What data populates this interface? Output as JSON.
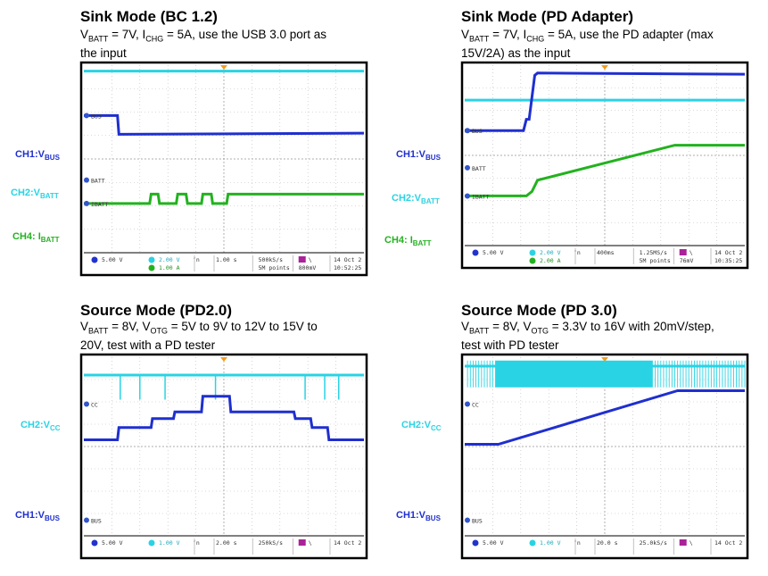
{
  "chart_data": [
    {
      "type": "line",
      "title": "Sink Mode (BC 1.2)",
      "subtitle_lines": [
        [
          "V",
          "BATT",
          " = 7V, I",
          "CHG",
          " = 5A, use the USB 3.0 port as"
        ],
        [
          "the input"
        ]
      ],
      "channel_labels": [
        {
          "text": "CH1:V",
          "sub": "BUS",
          "color": "#1f2fcf"
        },
        {
          "text": "CH2:V",
          "sub": "BATT",
          "color": "#29d3e3"
        },
        {
          "text": "CH4: I",
          "sub": "BATT",
          "color": "#22b21f"
        }
      ],
      "markers": [
        "BUS",
        "BATT",
        "IBATT"
      ],
      "status": {
        "ch1": "5.00 V",
        "ch2": "2.00 V",
        "ch4": "1.00 A",
        "time": "1.00 s",
        "rate": "500kS/s",
        "points": "5M points",
        "trigger": "800mV",
        "date": "14 Oct 2",
        "clock": "10:52:25"
      },
      "series": [
        {
          "name": "CH2",
          "color": "#29d3e3",
          "x": [
            0,
            10
          ],
          "y": [
            0.25,
            0.25
          ]
        },
        {
          "name": "CH1",
          "color": "#1f2fcf",
          "x": [
            0,
            1.2,
            1.25,
            10
          ],
          "y": [
            2.15,
            2.15,
            2.95,
            2.9
          ]
        },
        {
          "name": "CH4",
          "color": "#22b21f",
          "x": [
            0,
            2.35,
            2.4,
            2.65,
            2.7,
            3.3,
            3.35,
            3.65,
            3.7,
            4.2,
            4.25,
            4.55,
            4.6,
            5.1,
            5.15,
            10
          ],
          "y": [
            5.9,
            5.9,
            5.5,
            5.5,
            5.9,
            5.9,
            5.5,
            5.5,
            5.9,
            5.9,
            5.5,
            5.5,
            5.9,
            5.9,
            5.5,
            5.5
          ]
        }
      ]
    },
    {
      "type": "line",
      "title": "Sink Mode (PD Adapter)",
      "subtitle_lines": [
        [
          "V",
          "BATT",
          " = 7V, I",
          "CHG",
          " = 5A, use the PD adapter (max"
        ],
        [
          "15V/2A) as the input"
        ]
      ],
      "channel_labels": [
        {
          "text": "CH1:V",
          "sub": "BUS",
          "color": "#1f2fcf"
        },
        {
          "text": "CH2:V",
          "sub": "BATT",
          "color": "#29d3e3"
        },
        {
          "text": "CH4: I",
          "sub": "BATT",
          "color": "#22b21f"
        }
      ],
      "markers": [
        "BUS",
        "BATT",
        "IBATT"
      ],
      "status": {
        "ch1": "5.00 V",
        "ch2": "2.00 V",
        "ch4": "2.00 A",
        "time": "400ms",
        "rate": "1.25MS/s",
        "points": "5M points",
        "trigger": "76mV",
        "date": "14 Oct 2",
        "clock": "10:35:25"
      },
      "series": [
        {
          "name": "CH2",
          "color": "#29d3e3",
          "x": [
            0,
            10
          ],
          "y": [
            1.55,
            1.55
          ]
        },
        {
          "name": "CH1",
          "color": "#1f2fcf",
          "x": [
            0,
            2.1,
            2.2,
            2.3,
            2.5,
            2.6,
            10
          ],
          "y": [
            2.9,
            2.9,
            2.4,
            2.4,
            0.45,
            0.35,
            0.4
          ]
        },
        {
          "name": "CH4",
          "color": "#22b21f",
          "x": [
            0,
            2.2,
            2.4,
            2.6,
            7.5,
            10
          ],
          "y": [
            5.8,
            5.8,
            5.6,
            5.1,
            3.55,
            3.55
          ]
        }
      ]
    },
    {
      "type": "line",
      "title": "Source Mode (PD2.0)",
      "subtitle_lines": [
        [
          "V",
          "BATT",
          " = 8V, V",
          "OTG",
          " = 5V to 9V to 12V to 15V to"
        ],
        [
          "20V, test with a PD tester"
        ]
      ],
      "channel_labels": [
        {
          "text": "CH2:V",
          "sub": "CC",
          "color": "#29d3e3"
        },
        {
          "text": "CH1:V",
          "sub": "BUS",
          "color": "#1f2fcf"
        }
      ],
      "markers": [
        "CC",
        "BUS"
      ],
      "status": {
        "ch1": "5.00 V",
        "ch2": "1.00 V",
        "ch4": "",
        "time": "2.00 s",
        "rate": "250kS/s",
        "points": "",
        "trigger": "",
        "date": "14 Oct 2",
        "clock": ""
      },
      "pulses": [
        1.3,
        2.0,
        2.9,
        4.7,
        7.9,
        8.6,
        9.1
      ],
      "series": [
        {
          "name": "CH2",
          "color": "#29d3e3",
          "x": [
            0,
            10
          ],
          "y": [
            0.8,
            0.8
          ]
        },
        {
          "name": "CH1",
          "color": "#1f2fcf",
          "x": [
            0,
            1.2,
            1.25,
            2.4,
            2.45,
            3.2,
            3.25,
            4.2,
            4.25,
            5.2,
            5.25,
            7.5,
            7.55,
            8.1,
            8.15,
            8.7,
            8.75,
            9.1,
            9.15,
            9.6,
            9.65,
            10
          ],
          "y": [
            3.7,
            3.7,
            3.15,
            3.15,
            2.75,
            2.75,
            2.45,
            2.45,
            1.75,
            1.75,
            2.45,
            2.45,
            2.75,
            2.75,
            3.15,
            3.15,
            3.7,
            3.7,
            3.7,
            3.7,
            3.7,
            3.7
          ]
        }
      ]
    },
    {
      "type": "line",
      "title": "Source Mode (PD 3.0)",
      "subtitle_lines": [
        [
          "V",
          "BATT",
          " = 8V, V",
          "OTG",
          " = 3.3V to 16V with 20mV/step,"
        ],
        [
          "test with PD tester"
        ]
      ],
      "channel_labels": [
        {
          "text": "CH2:V",
          "sub": "CC",
          "color": "#29d3e3"
        },
        {
          "text": "CH1:V",
          "sub": "BUS",
          "color": "#1f2fcf"
        }
      ],
      "markers": [
        "CC",
        "BUS"
      ],
      "status": {
        "ch1": "5.00 V",
        "ch2": "1.00 V",
        "ch4": "",
        "time": "20.0 s",
        "rate": "25.0kS/s",
        "points": "",
        "trigger": "",
        "date": "14 Oct 2",
        "clock": ""
      },
      "noise_band": [
        [
          0.1,
          1.1
        ],
        [
          6.7,
          10
        ]
      ],
      "solid_band": [
        1.1,
        6.7
      ],
      "series": [
        {
          "name": "CH2",
          "color": "#29d3e3",
          "x": [
            0,
            10
          ],
          "y": [
            0.4,
            0.4
          ]
        },
        {
          "name": "CH1",
          "color": "#1f2fcf",
          "x": [
            0,
            1.2,
            7.6,
            10
          ],
          "y": [
            3.9,
            3.9,
            1.5,
            1.5
          ]
        }
      ]
    }
  ]
}
